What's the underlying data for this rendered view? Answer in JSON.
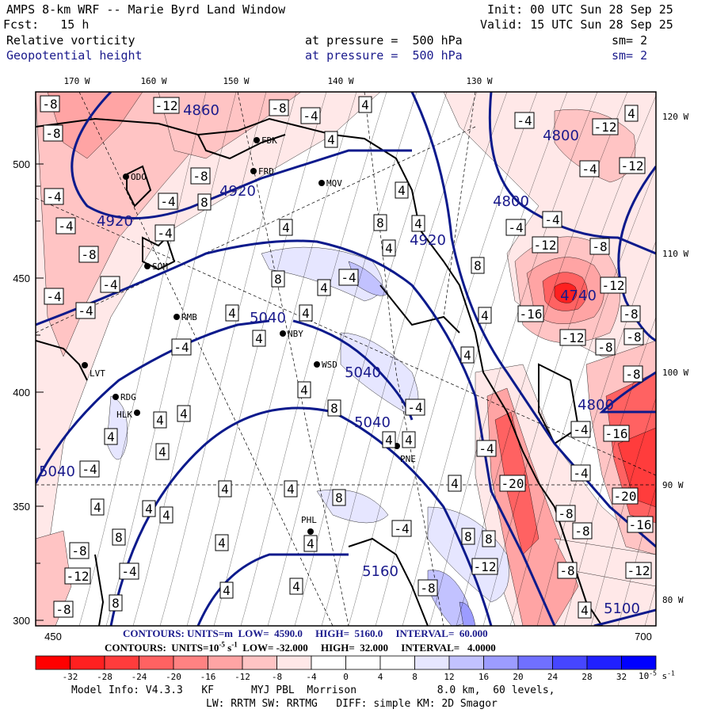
{
  "header": {
    "title": "AMPS 8-km WRF -- Marie Byrd Land Window",
    "init": "Init: 00 UTC Sun 28 Sep 25",
    "fcst": "Fcst:   15 h",
    "valid": "Valid: 15 UTC Sun 28 Sep 25",
    "field1": {
      "name": "Relative vorticity",
      "level": "at pressure =  500 hPa",
      "sm": "sm= 2"
    },
    "field2": {
      "name": "Geopotential height",
      "level": "at pressure =  500 hPa",
      "sm": "sm= 2"
    }
  },
  "axes": {
    "top_lon": [
      "170 W",
      "160 W",
      "150 W",
      "140 W",
      "130 W"
    ],
    "right_lon": [
      "120 W",
      "110 W",
      "100 W",
      "90 W",
      "80 W"
    ],
    "left_y": [
      "500",
      "450",
      "400",
      "350",
      "300"
    ],
    "bottom_x": [
      "450",
      "700"
    ]
  },
  "stations": [
    "ODO",
    "FDK",
    "FRD",
    "MQV",
    "SOM",
    "RMB",
    "NBY",
    "WSD",
    "LVT",
    "RDG",
    "HLK",
    "PNE",
    "PHL"
  ],
  "vorticity_labels": [
    "-8",
    "-8",
    "-12",
    "-8",
    "-4",
    "4",
    "-4",
    "-12",
    "4",
    "4",
    "-4",
    "-12",
    "-8",
    "-4",
    "-4",
    "8",
    "-4",
    "-4",
    "-4",
    "-4",
    "-8",
    "4",
    "4",
    "4",
    "4",
    "8",
    "-12",
    "-8",
    "8",
    "4",
    "-4",
    "8",
    "-4",
    "-12",
    "-4",
    "4",
    "4",
    "4",
    "-16",
    "-8",
    "-4",
    "-4",
    "4",
    "-12",
    "-8",
    "-8",
    "4",
    "4",
    "8",
    "-4",
    "4",
    "4",
    "4",
    "-8",
    "-4",
    "-16",
    "4",
    "-4",
    "4",
    "4",
    "-4",
    "4",
    "-4",
    "4",
    "4",
    "4",
    "4",
    "8",
    "4",
    "4",
    "-20",
    "-20",
    "-8",
    "-16",
    "-4",
    "8",
    "-8",
    "8",
    "-8",
    "8",
    "4",
    "-12",
    "-4",
    "-12",
    "-8",
    "-12",
    "4",
    "4",
    "-8",
    "-8",
    "8",
    "4"
  ],
  "height_labels": [
    "4860",
    "4800",
    "4920",
    "4920",
    "4800",
    "4920",
    "5040",
    "4740",
    "5040",
    "5040",
    "4800",
    "5040",
    "5160",
    "5100"
  ],
  "contour_info": {
    "height": "CONTOURS: UNITS=m  LOW=  4590.0     HIGH=  5160.0     INTERVAL=  60.000",
    "vorticity_prefix": "CONTOURS:  UNITS=10",
    "vorticity_exp": "-5",
    "vorticity_suffix": " s",
    "vorticity_sexp": "-1",
    "vorticity_rest": "  LOW= -32.000     HIGH=  32.000     INTERVAL=   4.0000"
  },
  "colorbar": {
    "ticks": [
      "-32",
      "-28",
      "-24",
      "-20",
      "-16",
      "-12",
      "-8",
      "-4",
      "0",
      "4",
      "8",
      "12",
      "16",
      "20",
      "24",
      "28",
      "32"
    ],
    "units": "10",
    "units_exp": "-5",
    "units_s": " s",
    "units_sexp": "-1",
    "colors": [
      "#ff0000",
      "#ff2020",
      "#ff3c3c",
      "#ff6262",
      "#ff8282",
      "#ffa4a4",
      "#ffc4c4",
      "#ffe8e8",
      "#ffffff",
      "#ffffff",
      "#ffffff",
      "#e6e6ff",
      "#c2c2ff",
      "#9c9cff",
      "#7070ff",
      "#4646ff",
      "#2020ff",
      "#0000ff"
    ]
  },
  "model_info": {
    "line1": "Model Info: V4.3.3   KF      MYJ PBL  Morrison             8.0 km,  60 levels,",
    "line2": "LW: RRTM SW: RRTMG   DIFF: simple KM: 2D Smagor"
  },
  "colors": {
    "height_contour": "#0c1a8c",
    "text_blue": "#1a1a8c"
  }
}
